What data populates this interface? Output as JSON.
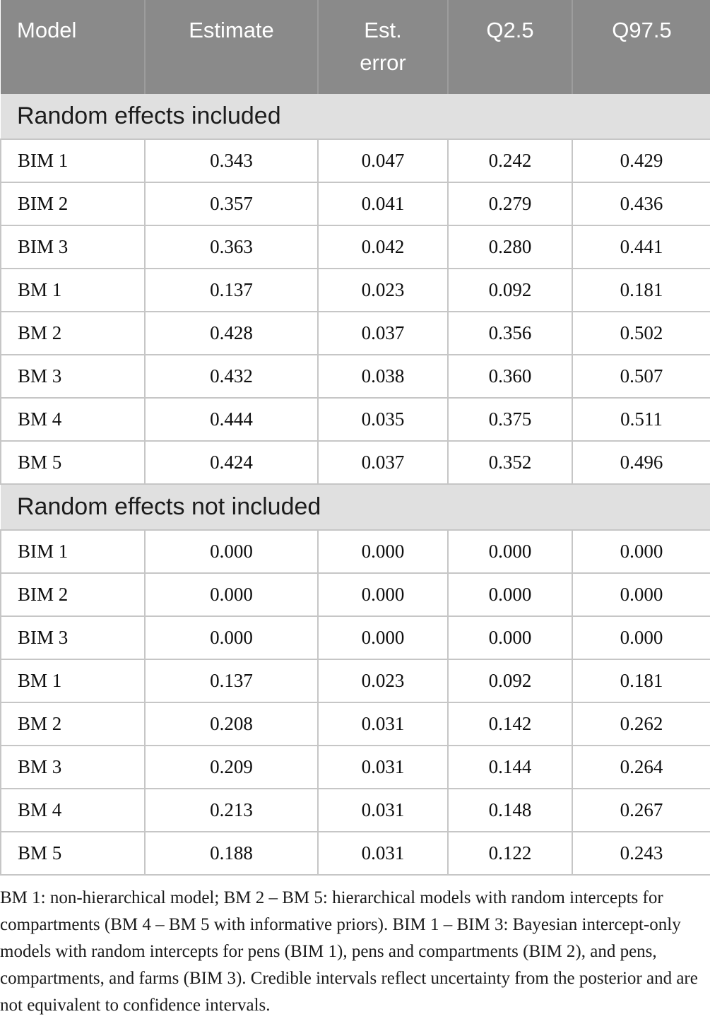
{
  "table": {
    "columns": [
      "Model",
      "Estimate",
      "Est. error",
      "Q2.5",
      "Q97.5"
    ],
    "sections": [
      {
        "label": "Random effects included",
        "rows": [
          [
            "BIM 1",
            "0.343",
            "0.047",
            "0.242",
            "0.429"
          ],
          [
            "BIM 2",
            "0.357",
            "0.041",
            "0.279",
            "0.436"
          ],
          [
            "BIM 3",
            "0.363",
            "0.042",
            "0.280",
            "0.441"
          ],
          [
            "BM 1",
            "0.137",
            "0.023",
            "0.092",
            "0.181"
          ],
          [
            "BM 2",
            "0.428",
            "0.037",
            "0.356",
            "0.502"
          ],
          [
            "BM 3",
            "0.432",
            "0.038",
            "0.360",
            "0.507"
          ],
          [
            "BM 4",
            "0.444",
            "0.035",
            "0.375",
            "0.511"
          ],
          [
            "BM 5",
            "0.424",
            "0.037",
            "0.352",
            "0.496"
          ]
        ]
      },
      {
        "label": "Random effects not included",
        "rows": [
          [
            "BIM 1",
            "0.000",
            "0.000",
            "0.000",
            "0.000"
          ],
          [
            "BIM 2",
            "0.000",
            "0.000",
            "0.000",
            "0.000"
          ],
          [
            "BIM 3",
            "0.000",
            "0.000",
            "0.000",
            "0.000"
          ],
          [
            "BM 1",
            "0.137",
            "0.023",
            "0.092",
            "0.181"
          ],
          [
            "BM 2",
            "0.208",
            "0.031",
            "0.142",
            "0.262"
          ],
          [
            "BM 3",
            "0.209",
            "0.031",
            "0.144",
            "0.264"
          ],
          [
            "BM 4",
            "0.213",
            "0.031",
            "0.148",
            "0.267"
          ],
          [
            "BM 5",
            "0.188",
            "0.031",
            "0.122",
            "0.243"
          ]
        ]
      }
    ]
  },
  "footnote": "BM 1: non-hierarchical model; BM 2 – BM 5: hierarchical models with random intercepts for compartments (BM 4 – BM 5 with informative priors). BIM 1 – BIM 3: Bayesian intercept-only models with random intercepts for pens (BIM 1), pens and compartments (BIM 2), and pens, compartments, and farms (BIM 3). Credible intervals reflect uncertainty from the posterior and are not equivalent to confidence intervals.",
  "colors": {
    "header_bg": "#8a8a8a",
    "header_text": "#ffffff",
    "section_bg": "#e0e0e0",
    "cell_border": "#c6c6c6",
    "body_text": "#0f0f0f"
  }
}
